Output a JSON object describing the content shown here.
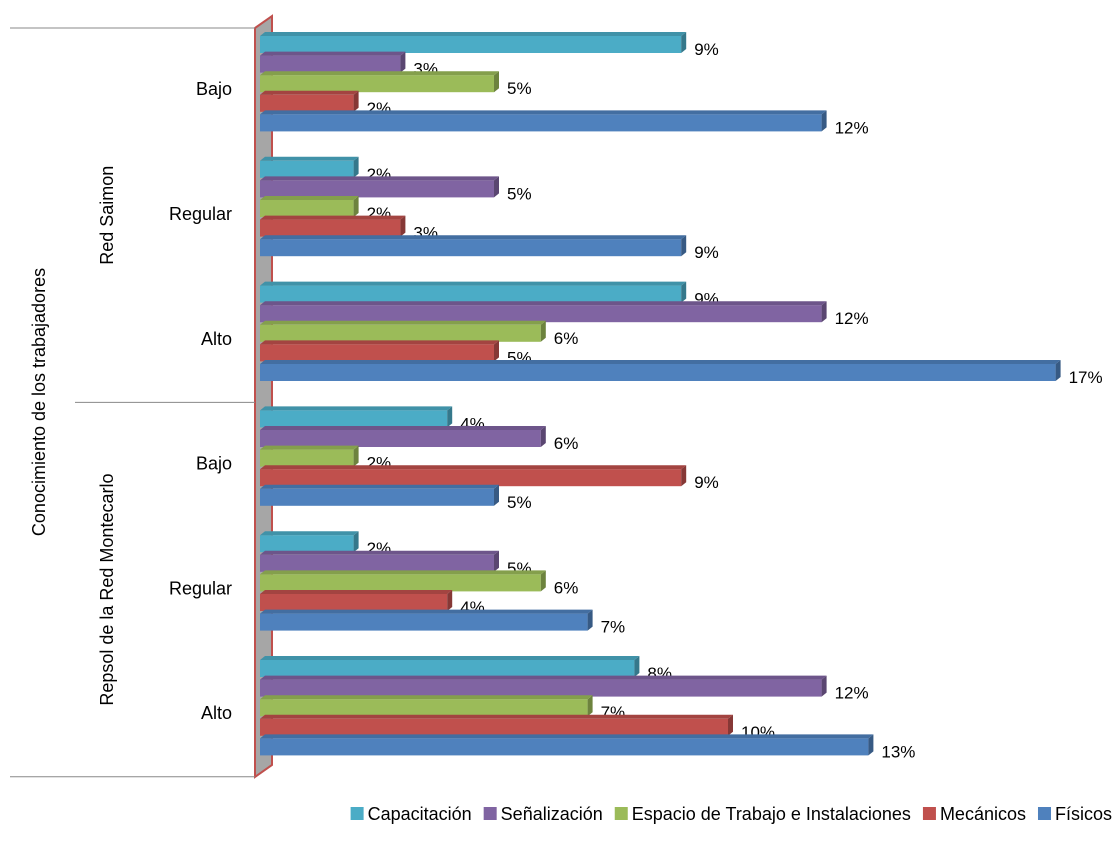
{
  "chart_data": {
    "type": "bar",
    "orientation": "horizontal",
    "axis_label": "Conocimiento de los trabajadores",
    "groups": [
      {
        "name": "Red Saimon",
        "categories": [
          "Bajo",
          "Regular",
          "Alto"
        ]
      },
      {
        "name": "Repsol de la Red Montecarlo",
        "categories": [
          "Bajo",
          "Regular",
          "Alto"
        ]
      }
    ],
    "series": [
      {
        "name": "Capacitación",
        "color": "#4bacc6",
        "values": [
          9,
          2,
          9,
          4,
          2,
          8
        ],
        "value_labels": [
          "9%",
          "2%",
          "9%",
          "4%",
          "2%",
          "8%"
        ]
      },
      {
        "name": "Señalización",
        "color": "#8064a2",
        "values": [
          3,
          5,
          12,
          6,
          5,
          12
        ],
        "value_labels": [
          "3%",
          "5%",
          "12%",
          "6%",
          "5%",
          "12%"
        ]
      },
      {
        "name": "Espacio de Trabajo e Instalaciones",
        "color": "#9bbb59",
        "values": [
          5,
          2,
          6,
          2,
          6,
          7
        ],
        "value_labels": [
          "5%",
          "2%",
          "6%",
          "2%",
          "6%",
          "7%"
        ]
      },
      {
        "name": "Mecánicos",
        "color": "#c0504d",
        "values": [
          2,
          3,
          5,
          9,
          4,
          10
        ],
        "value_labels": [
          "2%",
          "3%",
          "5%",
          "9%",
          "4%",
          "10%"
        ]
      },
      {
        "name": "Físicos",
        "color": "#4f81bd",
        "values": [
          12,
          9,
          17,
          5,
          7,
          13
        ],
        "value_labels": [
          "12%",
          "9%",
          "17%",
          "5%",
          "7%",
          "13%"
        ]
      }
    ],
    "legend": "bottom"
  }
}
